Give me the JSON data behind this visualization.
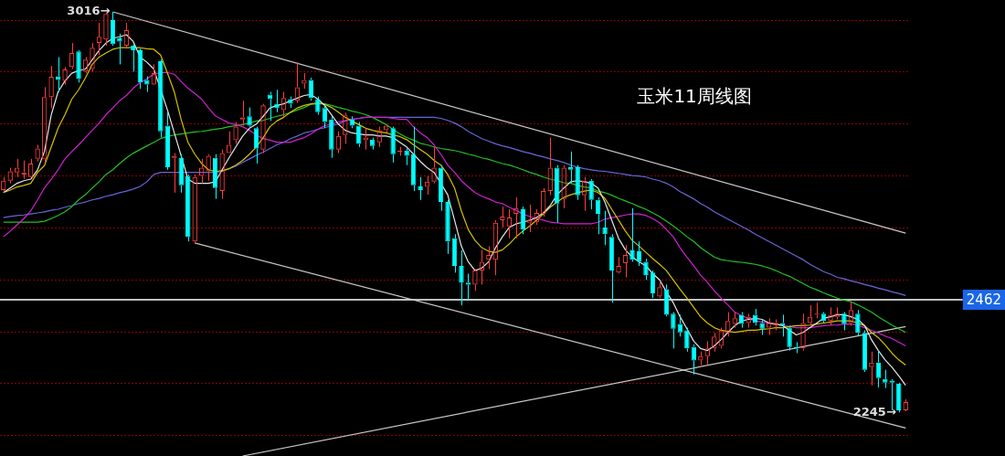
{
  "chart_data": {
    "type": "candlestick",
    "title": "玉米11周线图",
    "categories": [
      null,
      null,
      null,
      null,
      null,
      null,
      null,
      null,
      null,
      null,
      null,
      null,
      null,
      null,
      null,
      null,
      null,
      null,
      null,
      null,
      null,
      null,
      null,
      null,
      null,
      null,
      null,
      null,
      null,
      null,
      null,
      null,
      null,
      null,
      null,
      null,
      null,
      null,
      null,
      null,
      null,
      null,
      null,
      null,
      null,
      null,
      null,
      null,
      null,
      null,
      null,
      null,
      null,
      null,
      null,
      null,
      null,
      null,
      null,
      null,
      null,
      null,
      null,
      null,
      null,
      null,
      null,
      null,
      null,
      null,
      null,
      null,
      null,
      null,
      null,
      null,
      null,
      null,
      null,
      null,
      null,
      null,
      null,
      null,
      null,
      null,
      null,
      null,
      null,
      null,
      null,
      null,
      null,
      null,
      null,
      null,
      null,
      null,
      null,
      null,
      null,
      null,
      null,
      null,
      null,
      null,
      null,
      null,
      null,
      null,
      null,
      null,
      null,
      null,
      null,
      null,
      null,
      null,
      null,
      null,
      null,
      null,
      null,
      null,
      null,
      null,
      null,
      null,
      null,
      null,
      null,
      null,
      null
    ],
    "yticks": [
      {
        "value": 3000,
        "label": null
      },
      {
        "value": 2900,
        "label": null
      },
      {
        "value": 2800,
        "label": null
      },
      {
        "value": 2700,
        "label": null
      },
      {
        "value": 2600,
        "label": null
      },
      {
        "value": 2500,
        "label": null
      },
      {
        "value": 2400,
        "label": null
      },
      {
        "value": 2300,
        "label": null
      },
      {
        "value": 2200,
        "label": null
      }
    ],
    "grid": "y",
    "marker": "none",
    "ref_lines": [
      {
        "axis": "y",
        "value": 2462,
        "label": "2462",
        "color": "#ffffff"
      }
    ],
    "annotations": [
      "3016→",
      "2245→"
    ],
    "series": [
      {
        "ohlc": [
          [
            2673,
            2698,
            2668,
            2691
          ],
          [
            2691,
            2716,
            2686,
            2709
          ],
          [
            2707,
            2733,
            2698,
            2716
          ],
          [
            2703,
            2730,
            2694,
            2707
          ],
          [
            2698,
            2733,
            2698,
            2724
          ],
          [
            2733,
            2760,
            2728,
            2753
          ],
          [
            2733,
            2871,
            2726,
            2852
          ],
          [
            2852,
            2912,
            2831,
            2891
          ],
          [
            2892,
            2929,
            2862,
            2885
          ],
          [
            2883,
            2910,
            2876,
            2905
          ],
          [
            2910,
            2956,
            2906,
            2937
          ],
          [
            2940,
            2942,
            2880,
            2887
          ],
          [
            2901,
            2929,
            2898,
            2924
          ],
          [
            2906,
            2956,
            2901,
            2947
          ],
          [
            2956,
            2995,
            2933,
            2968
          ],
          [
            2963,
            3014,
            2951,
            3012
          ],
          [
            3000,
            3016,
            2951,
            2954
          ],
          [
            2965,
            2974,
            2915,
            2959
          ],
          [
            2951,
            2995,
            2945,
            2981
          ],
          [
            2951,
            2954,
            2901,
            2942
          ],
          [
            2942,
            2945,
            2868,
            2880
          ],
          [
            2885,
            2892,
            2862,
            2876
          ],
          [
            2876,
            2915,
            2875,
            2898
          ],
          [
            2921,
            2924,
            2774,
            2786
          ],
          [
            2797,
            2823,
            2712,
            2717
          ],
          [
            2735,
            2744,
            2668,
            2739
          ],
          [
            2735,
            2742,
            2668,
            2682
          ],
          [
            2700,
            2703,
            2574,
            2583
          ],
          [
            2574,
            2703,
            2571,
            2698
          ],
          [
            2700,
            2733,
            2686,
            2716
          ],
          [
            2709,
            2742,
            2691,
            2739
          ],
          [
            2735,
            2742,
            2656,
            2677
          ],
          [
            2671,
            2751,
            2656,
            2744
          ],
          [
            2744,
            2786,
            2744,
            2760
          ],
          [
            2769,
            2804,
            2762,
            2795
          ],
          [
            2809,
            2845,
            2797,
            2813
          ],
          [
            2815,
            2832,
            2795,
            2797
          ],
          [
            2792,
            2795,
            2724,
            2753
          ],
          [
            2751,
            2839,
            2744,
            2836
          ],
          [
            2857,
            2862,
            2806,
            2848
          ],
          [
            2839,
            2866,
            2823,
            2831
          ],
          [
            2827,
            2862,
            2813,
            2850
          ],
          [
            2848,
            2853,
            2831,
            2839
          ],
          [
            2845,
            2919,
            2841,
            2871
          ],
          [
            2878,
            2898,
            2868,
            2885
          ],
          [
            2885,
            2889,
            2845,
            2850
          ],
          [
            2848,
            2853,
            2818,
            2823
          ],
          [
            2831,
            2836,
            2792,
            2804
          ],
          [
            2809,
            2815,
            2735,
            2751
          ],
          [
            2751,
            2786,
            2744,
            2777
          ],
          [
            2779,
            2822,
            2762,
            2818
          ],
          [
            2809,
            2815,
            2792,
            2797
          ],
          [
            2797,
            2804,
            2756,
            2762
          ],
          [
            2769,
            2792,
            2751,
            2774
          ],
          [
            2770,
            2774,
            2751,
            2758
          ],
          [
            2765,
            2795,
            2756,
            2788
          ],
          [
            2788,
            2800,
            2783,
            2797
          ],
          [
            2792,
            2795,
            2726,
            2742
          ],
          [
            2747,
            2756,
            2739,
            2749
          ],
          [
            2749,
            2753,
            2721,
            2739
          ],
          [
            2742,
            2795,
            2671,
            2682
          ],
          [
            2680,
            2698,
            2654,
            2673
          ],
          [
            2679,
            2700,
            2664,
            2689
          ],
          [
            2689,
            2756,
            2686,
            2716
          ],
          [
            2716,
            2721,
            2633,
            2650
          ],
          [
            2650,
            2654,
            2550,
            2574
          ],
          [
            2580,
            2588,
            2514,
            2527
          ],
          [
            2527,
            2557,
            2451,
            2495
          ],
          [
            2495,
            2512,
            2461,
            2491
          ],
          [
            2491,
            2521,
            2479,
            2518
          ],
          [
            2518,
            2558,
            2491,
            2535
          ],
          [
            2539,
            2565,
            2521,
            2548
          ],
          [
            2539,
            2615,
            2509,
            2610
          ],
          [
            2615,
            2641,
            2601,
            2622
          ],
          [
            2603,
            2636,
            2580,
            2620
          ],
          [
            2627,
            2659,
            2580,
            2638
          ],
          [
            2636,
            2641,
            2588,
            2597
          ],
          [
            2610,
            2645,
            2592,
            2615
          ],
          [
            2611,
            2636,
            2606,
            2629
          ],
          [
            2627,
            2677,
            2622,
            2671
          ],
          [
            2671,
            2774,
            2663,
            2716
          ],
          [
            2716,
            2721,
            2610,
            2647
          ],
          [
            2656,
            2721,
            2638,
            2716
          ],
          [
            2717,
            2747,
            2686,
            2712
          ],
          [
            2717,
            2721,
            2654,
            2663
          ],
          [
            2663,
            2698,
            2633,
            2691
          ],
          [
            2691,
            2694,
            2636,
            2654
          ],
          [
            2654,
            2659,
            2588,
            2627
          ],
          [
            2601,
            2633,
            2567,
            2588
          ],
          [
            2583,
            2588,
            2456,
            2518
          ],
          [
            2514,
            2544,
            2512,
            2527
          ],
          [
            2532,
            2567,
            2505,
            2548
          ],
          [
            2557,
            2638,
            2535,
            2539
          ],
          [
            2555,
            2574,
            2527,
            2535
          ],
          [
            2535,
            2541,
            2500,
            2509
          ],
          [
            2514,
            2518,
            2465,
            2474
          ],
          [
            2468,
            2495,
            2465,
            2486
          ],
          [
            2482,
            2491,
            2430,
            2433
          ],
          [
            2435,
            2438,
            2368,
            2406
          ],
          [
            2415,
            2433,
            2391,
            2399
          ],
          [
            2403,
            2408,
            2362,
            2368
          ],
          [
            2371,
            2376,
            2318,
            2345
          ],
          [
            2345,
            2362,
            2336,
            2353
          ],
          [
            2353,
            2382,
            2336,
            2368
          ],
          [
            2368,
            2398,
            2362,
            2391
          ],
          [
            2373,
            2408,
            2368,
            2403
          ],
          [
            2398,
            2438,
            2391,
            2421
          ],
          [
            2415,
            2438,
            2408,
            2426
          ],
          [
            2433,
            2438,
            2408,
            2415
          ],
          [
            2417,
            2435,
            2408,
            2429
          ],
          [
            2433,
            2444,
            2412,
            2417
          ],
          [
            2417,
            2424,
            2394,
            2406
          ],
          [
            2408,
            2426,
            2394,
            2417
          ],
          [
            2412,
            2424,
            2403,
            2417
          ],
          [
            2417,
            2433,
            2391,
            2412
          ],
          [
            2408,
            2412,
            2364,
            2371
          ],
          [
            2371,
            2380,
            2359,
            2368
          ],
          [
            2368,
            2435,
            2364,
            2417
          ],
          [
            2417,
            2451,
            2412,
            2429
          ],
          [
            2433,
            2456,
            2426,
            2435
          ],
          [
            2435,
            2438,
            2417,
            2421
          ],
          [
            2421,
            2447,
            2412,
            2433
          ],
          [
            2429,
            2447,
            2424,
            2435
          ],
          [
            2435,
            2438,
            2403,
            2415
          ],
          [
            2417,
            2458,
            2412,
            2442
          ],
          [
            2435,
            2442,
            2392,
            2398
          ],
          [
            2398,
            2403,
            2323,
            2327
          ],
          [
            2332,
            2362,
            2297,
            2341
          ],
          [
            2341,
            2362,
            2293,
            2311
          ],
          [
            2309,
            2327,
            2292,
            2302
          ],
          [
            2306,
            2309,
            2249,
            2302
          ],
          [
            2300,
            2302,
            2245,
            2249
          ],
          [
            2249,
            2270,
            2247,
            2265
          ]
        ],
        "colors": [
          "#ff3d3d",
          "#ff3d3d",
          "#ff3d3d",
          "#ff3d3d",
          "#ff3d3d",
          "#ff3d3d",
          "#ff3d3d",
          "#ff3d3d",
          "#00ffff",
          "#ff3d3d",
          "#ff3d3d",
          "#00ffff",
          "#ff3d3d",
          "#ff3d3d",
          "#ff3d3d",
          "#ff3d3d",
          "#00ffff",
          "#00ffff",
          "#ff3d3d",
          "#00ffff",
          "#00ffff",
          "#00ffff",
          "#ff3d3d",
          "#00ffff",
          "#00ffff",
          "#ff3d3d",
          "#00ffff",
          "#00ffff",
          "#ff3d3d",
          "#ff3d3d",
          "#ff3d3d",
          "#00ffff",
          "#ff3d3d",
          "#ff3d3d",
          "#ff3d3d",
          "#ff3d3d",
          "#00ffff",
          "#00ffff",
          "#ff3d3d",
          "#00ffff",
          "#00ffff",
          "#ff3d3d",
          "#00ffff",
          "#ff3d3d",
          "#ff3d3d",
          "#00ffff",
          "#00ffff",
          "#00ffff",
          "#00ffff",
          "#ff3d3d",
          "#ff3d3d",
          "#00ffff",
          "#00ffff",
          "#ff3d3d",
          "#00ffff",
          "#ff3d3d",
          "#ff3d3d",
          "#00ffff",
          "#ff3d3d",
          "#00ffff",
          "#00ffff",
          "#00ffff",
          "#ff3d3d",
          "#ff3d3d",
          "#00ffff",
          "#00ffff",
          "#00ffff",
          "#00ffff",
          "#00ffff",
          "#ff3d3d",
          "#ff3d3d",
          "#ff3d3d",
          "#ff3d3d",
          "#ff3d3d",
          "#ff3d3d",
          "#ff3d3d",
          "#00ffff",
          "#ff3d3d",
          "#ff3d3d",
          "#ff3d3d",
          "#ff3d3d",
          "#00ffff",
          "#ff3d3d",
          "#00ffff",
          "#00ffff",
          "#ff3d3d",
          "#00ffff",
          "#00ffff",
          "#00ffff",
          "#00ffff",
          "#ff3d3d",
          "#ff3d3d",
          "#00ffff",
          "#00ffff",
          "#00ffff",
          "#00ffff",
          "#ff3d3d",
          "#00ffff",
          "#00ffff",
          "#00ffff",
          "#00ffff",
          "#00ffff",
          "#ff3d3d",
          "#ff3d3d",
          "#ff3d3d",
          "#ff3d3d",
          "#ff3d3d",
          "#ff3d3d",
          "#00ffff",
          "#ff3d3d",
          "#00ffff",
          "#00ffff",
          "#ff3d3d",
          "#ff3d3d",
          "#00ffff",
          "#00ffff",
          "#00ffff",
          "#ff3d3d",
          "#ff3d3d",
          "#ff3d3d",
          "#00ffff",
          "#ff3d3d",
          "#ff3d3d",
          "#00ffff",
          "#ff3d3d",
          "#00ffff",
          "#00ffff",
          "#ff3d3d",
          "#00ffff",
          "#00ffff",
          "#00ffff",
          "#00ffff",
          "#ff3d3d"
        ]
      },
      {
        "type": "line",
        "color": "#e6e6e6",
        "values": [
          2668,
          2677,
          2686,
          2691,
          2694,
          2712,
          2747,
          2818,
          2862,
          2883,
          2898,
          2903,
          2906,
          2924,
          2942,
          2956,
          2965,
          2968,
          2972,
          2959,
          2929,
          2919,
          2906,
          null,
          2827,
          2783,
          2739,
          2694,
          2686,
          2686,
          2686,
          2689,
          2712,
          2735,
          2756,
          2777,
          2792,
          2800,
          2815,
          2831,
          2836,
          2839,
          2845,
          2850,
          2855,
          2857,
          2848,
          2836,
          2818,
          2800,
          2788,
          2783,
          2781,
          2779,
          2779,
          2777,
          2777,
          2774,
          2765,
          2756,
          2742,
          2728,
          2716,
          2707,
          2686,
          2664,
          2615,
          2565,
          2535,
          2518,
          2523,
          2535,
          2562,
          2583,
          2601,
          2608,
          2611,
          2615,
          2620,
          2629,
          2643,
          2664,
          2677,
          2689,
          2691,
          2689,
          2686,
          2677,
          2650,
          2615,
          2580,
          2558,
          2544,
          2535,
          2527,
          2512,
          2500,
          2477,
          2456,
          2429,
          2406,
          2382,
          2368,
          2364,
          2373,
          2385,
          2399,
          2412,
          2421,
          2424,
          2426,
          2424,
          2417,
          2415,
          2412,
          2403,
          2394,
          2399,
          2408,
          2417,
          2426,
          2429,
          2433,
          2433,
          2429,
          2424,
          2412,
          2385,
          2364,
          2346,
          2332,
          2315,
          2297
        ]
      },
      {
        "type": "line",
        "color": "#d4c200",
        "values": [
          2668,
          2673,
          2679,
          2682,
          2686,
          2707,
          2720,
          2756,
          2792,
          2818,
          2848,
          2866,
          2889,
          2915,
          2929,
          2937,
          2944,
          2947,
          2947,
          2947,
          2947,
          2945,
          2944,
          2933,
          2898,
          2862,
          2809,
          2765,
          2742,
          2724,
          2712,
          2709,
          2710,
          2714,
          2721,
          2730,
          2742,
          2756,
          2774,
          2795,
          2806,
          2813,
          2823,
          2831,
          2836,
          2839,
          2841,
          2838,
          2832,
          2823,
          2813,
          2806,
          2799,
          2792,
          2788,
          2785,
          2783,
          2779,
          2776,
          2770,
          2760,
          2751,
          2742,
          2730,
          2721,
          2703,
          2677,
          2633,
          2597,
          2576,
          2562,
          2555,
          2553,
          2558,
          2569,
          2583,
          2594,
          2604,
          2615,
          2627,
          2640,
          2650,
          2659,
          2664,
          2668,
          2671,
          2673,
          2668,
          2657,
          2636,
          2615,
          2594,
          2576,
          2565,
          2553,
          2541,
          2530,
          2518,
          2500,
          2482,
          2465,
          2447,
          2429,
          2417,
          2408,
          2403,
          2401,
          2399,
          2401,
          2403,
          2403,
          2405,
          2406,
          2408,
          2408,
          2410,
          2412,
          2412,
          2413,
          2415,
          2417,
          2419,
          2421,
          2421,
          2421,
          2417,
          2412,
          2399,
          2389,
          2375,
          2359,
          2346,
          2336
        ]
      },
      {
        "type": "line",
        "color": "#d020d0",
        "values": [
          2583,
          2594,
          2606,
          2618,
          2633,
          2654,
          2677,
          2694,
          2712,
          2733,
          2747,
          2760,
          2774,
          2788,
          2802,
          2818,
          2831,
          2845,
          2855,
          2869,
          2880,
          2887,
          2896,
          2899,
          2899,
          2896,
          2882,
          2869,
          2859,
          2848,
          2831,
          2816,
          2809,
          2802,
          2799,
          2795,
          2788,
          2779,
          2772,
          2769,
          2765,
          2765,
          2765,
          2770,
          2774,
          2781,
          2790,
          2797,
          2800,
          2804,
          2807,
          2809,
          2811,
          2813,
          2813,
          2813,
          2813,
          2811,
          2809,
          2809,
          2795,
          2783,
          2774,
          2760,
          2742,
          2721,
          2707,
          2691,
          2679,
          2668,
          2661,
          2656,
          2650,
          2647,
          2640,
          2634,
          2627,
          2622,
          2618,
          2615,
          2611,
          2610,
          2608,
          2608,
          2608,
          2608,
          2608,
          2611,
          2617,
          2620,
          2622,
          2625,
          2627,
          2627,
          2624,
          2618,
          2610,
          2597,
          2583,
          2562,
          2544,
          2527,
          2509,
          2495,
          2479,
          2465,
          2452,
          2438,
          2431,
          2426,
          2421,
          2419,
          2417,
          2415,
          2413,
          2410,
          2408,
          2408,
          2408,
          2410,
          2412,
          2413,
          2413,
          2415,
          2415,
          2413,
          2408,
          2403,
          2398,
          2392,
          2387,
          2380,
          2373
        ]
      },
      {
        "type": "line",
        "color": "#22c022",
        "values": [
          2611,
          2611,
          2611,
          2611,
          2611,
          2611,
          2613,
          2618,
          2624,
          2631,
          2641,
          2654,
          2664,
          2677,
          2689,
          2703,
          2712,
          2724,
          2735,
          2744,
          2751,
          2758,
          2765,
          2772,
          2776,
          2779,
          2781,
          2783,
          2785,
          2786,
          2788,
          2790,
          2792,
          2795,
          2797,
          2799,
          2802,
          2806,
          2807,
          2811,
          2815,
          2818,
          2822,
          2827,
          2832,
          2838,
          2839,
          2839,
          2836,
          2832,
          2829,
          2825,
          2822,
          2818,
          2813,
          2806,
          2799,
          2790,
          2781,
          2774,
          2769,
          2763,
          2760,
          2756,
          2753,
          2751,
          2749,
          2746,
          2742,
          2739,
          2735,
          2732,
          2728,
          2724,
          2721,
          2717,
          2712,
          2707,
          2703,
          2698,
          2694,
          2691,
          2687,
          2686,
          2682,
          2679,
          2677,
          2671,
          2668,
          2663,
          2657,
          2652,
          2647,
          2641,
          2636,
          2629,
          2622,
          2613,
          2604,
          2594,
          2583,
          2574,
          2562,
          2553,
          2544,
          2539,
          2537,
          2535,
          2534,
          2532,
          2530,
          2527,
          2523,
          2518,
          2512,
          2507,
          2500,
          2493,
          2486,
          2481,
          2475,
          2470,
          2465,
          2461,
          2458,
          2452,
          2445,
          2438,
          2429,
          2421,
          2413,
          2406,
          2399
        ]
      },
      {
        "type": "line",
        "color": "#6666d8",
        "values": [
          2620,
          2622,
          2624,
          2625,
          2627,
          2629,
          2631,
          2634,
          2636,
          2640,
          2643,
          2647,
          2650,
          2654,
          2657,
          2661,
          2664,
          2668,
          2671,
          2675,
          2680,
          2689,
          2703,
          2707,
          2707,
          2707,
          2707,
          2707,
          2707,
          2707,
          2707,
          2707,
          2709,
          2714,
          2719,
          2726,
          2733,
          2740,
          2746,
          2753,
          2760,
          2765,
          2772,
          2777,
          2783,
          2786,
          2790,
          2793,
          2797,
          2800,
          2806,
          2809,
          2811,
          2813,
          2813,
          2813,
          2813,
          2813,
          2813,
          2813,
          2813,
          2813,
          2813,
          2813,
          2811,
          2807,
          2802,
          2795,
          2786,
          2779,
          2772,
          2767,
          2762,
          2758,
          2755,
          2751,
          2747,
          2744,
          2740,
          2737,
          2733,
          2730,
          2726,
          2721,
          2717,
          2714,
          2712,
          2710,
          2709,
          2707,
          2705,
          2703,
          2701,
          2700,
          2698,
          2694,
          2691,
          2686,
          2679,
          2670,
          2663,
          2656,
          2647,
          2640,
          2631,
          2624,
          2617,
          2610,
          2603,
          2596,
          2588,
          2581,
          2574,
          2567,
          2560,
          2553,
          2546,
          2539,
          2530,
          2523,
          2516,
          2511,
          2505,
          2502,
          2498,
          2495,
          2491,
          2488,
          2484,
          2481,
          2477,
          2474,
          2470
        ]
      },
      {
        "type": "line",
        "color": "#c8c8c8",
        "values": [
          null,
          null,
          null,
          null,
          null,
          null,
          null,
          null,
          null,
          null,
          null,
          null,
          null,
          null,
          null,
          null,
          3016,
          null,
          null,
          null,
          null,
          null,
          null,
          null,
          null,
          null,
          null,
          null,
          null,
          null,
          null,
          null,
          null,
          null,
          null,
          null,
          null,
          null,
          null,
          null,
          null,
          null,
          null,
          null,
          null,
          null,
          null,
          null,
          null,
          null,
          null,
          null,
          null,
          null,
          null,
          null,
          null,
          null,
          null,
          null,
          null,
          null,
          null,
          null,
          null,
          null,
          null,
          null,
          null,
          null,
          null,
          null,
          null,
          null,
          null,
          null,
          null,
          null,
          null,
          null,
          null,
          null,
          null,
          null,
          null,
          null,
          null,
          null,
          null,
          null,
          null,
          null,
          null,
          null,
          null,
          null,
          null,
          null,
          null,
          null,
          null,
          null,
          null,
          null,
          null,
          null,
          null,
          null,
          null,
          null,
          null,
          null,
          null,
          null,
          null,
          null,
          null,
          null,
          null,
          null,
          null,
          null,
          null,
          null,
          null,
          null,
          null,
          null,
          null,
          null,
          null,
          null,
          2590
        ]
      },
      {
        "type": "line",
        "color": "#c8c8c8",
        "values": [
          null,
          null,
          null,
          null,
          null,
          null,
          null,
          null,
          null,
          null,
          null,
          null,
          null,
          null,
          null,
          null,
          null,
          null,
          null,
          null,
          null,
          null,
          null,
          null,
          null,
          null,
          null,
          null,
          2571,
          null,
          null,
          null,
          null,
          null,
          null,
          null,
          null,
          null,
          null,
          null,
          null,
          null,
          null,
          null,
          null,
          null,
          null,
          null,
          null,
          null,
          null,
          null,
          null,
          null,
          null,
          null,
          null,
          null,
          null,
          null,
          null,
          null,
          null,
          null,
          null,
          null,
          null,
          null,
          null,
          null,
          null,
          null,
          null,
          null,
          null,
          null,
          null,
          null,
          null,
          null,
          null,
          null,
          null,
          null,
          null,
          null,
          null,
          null,
          null,
          null,
          null,
          null,
          null,
          null,
          null,
          null,
          null,
          null,
          null,
          null,
          null,
          null,
          null,
          null,
          null,
          null,
          null,
          null,
          null,
          null,
          null,
          null,
          null,
          null,
          null,
          null,
          null,
          null,
          null,
          null,
          null,
          null,
          null,
          null,
          null,
          null,
          null,
          null,
          null,
          null,
          null,
          null,
          2215
        ]
      },
      {
        "type": "line",
        "color": "#c8c8c8",
        "values": [
          null,
          null,
          null,
          null,
          null,
          null,
          null,
          null,
          null,
          null,
          null,
          null,
          null,
          null,
          null,
          null,
          null,
          null,
          null,
          null,
          null,
          null,
          null,
          null,
          null,
          null,
          null,
          null,
          null,
          null,
          null,
          null,
          null,
          null,
          null,
          2161,
          null,
          null,
          null,
          null,
          null,
          null,
          null,
          null,
          null,
          null,
          null,
          null,
          null,
          null,
          null,
          null,
          null,
          null,
          null,
          null,
          null,
          null,
          null,
          null,
          null,
          null,
          null,
          null,
          null,
          null,
          null,
          null,
          null,
          null,
          null,
          null,
          null,
          null,
          null,
          null,
          null,
          null,
          null,
          null,
          null,
          null,
          null,
          null,
          null,
          null,
          null,
          null,
          null,
          null,
          null,
          null,
          null,
          null,
          null,
          null,
          null,
          null,
          null,
          null,
          null,
          null,
          null,
          null,
          null,
          null,
          null,
          null,
          null,
          null,
          null,
          null,
          null,
          null,
          null,
          null,
          null,
          null,
          null,
          null,
          null,
          null,
          null,
          null,
          null,
          null,
          null,
          null,
          null,
          null,
          null,
          null,
          2410
        ]
      }
    ]
  }
}
